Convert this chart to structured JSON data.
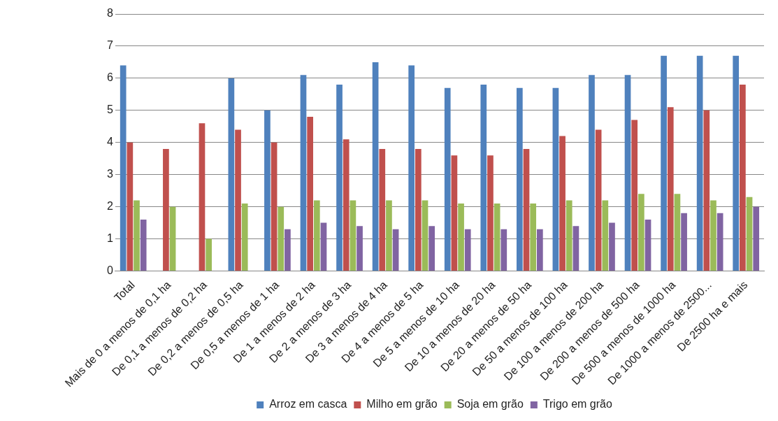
{
  "chart_data": {
    "type": "bar",
    "categories": [
      "Total",
      "Mais de 0 a menos de 0,1 ha",
      "De 0,1 a menos de 0,2 ha",
      "De 0,2 a menos de 0,5 ha",
      "De 0,5 a menos de 1 ha",
      "De 1 a menos de 2 ha",
      "De 2 a menos de 3 ha",
      "De 3 a menos de 4 ha",
      "De 4 a menos de 5 ha",
      "De 5 a menos de 10 ha",
      "De 10 a menos de 20 ha",
      "De 20 a menos de 50 ha",
      "De 50 a menos de 100 ha",
      "De 100 a menos de 200 ha",
      "De 200 a menos de 500 ha",
      "De 500 a menos de 1000 ha",
      "De 1000 a menos de 2500...",
      "De 2500 ha e mais"
    ],
    "series": [
      {
        "name": "Arroz em casca",
        "color": "#4f81bd",
        "values": [
          6.4,
          null,
          null,
          6.0,
          5.0,
          6.1,
          5.8,
          6.5,
          6.4,
          5.7,
          5.8,
          5.7,
          5.7,
          6.1,
          6.1,
          6.7,
          6.7,
          6.7
        ]
      },
      {
        "name": "Milho em grão",
        "color": "#c0504d",
        "values": [
          4.0,
          3.8,
          4.6,
          4.4,
          4.0,
          4.8,
          4.1,
          3.8,
          3.8,
          3.6,
          3.6,
          3.8,
          4.2,
          4.4,
          4.7,
          5.1,
          5.0,
          5.8
        ]
      },
      {
        "name": "Soja em grão",
        "color": "#9bbb59",
        "values": [
          2.2,
          2.0,
          1.0,
          2.1,
          2.0,
          2.2,
          2.2,
          2.2,
          2.2,
          2.1,
          2.1,
          2.1,
          2.2,
          2.2,
          2.4,
          2.4,
          2.2,
          2.3
        ]
      },
      {
        "name": "Trigo em grão",
        "color": "#8064a2",
        "values": [
          1.6,
          null,
          null,
          null,
          1.3,
          1.5,
          1.4,
          1.3,
          1.4,
          1.3,
          1.3,
          1.3,
          1.4,
          1.5,
          1.6,
          1.8,
          1.8,
          2.0
        ]
      }
    ],
    "ylim": [
      0,
      8
    ],
    "yticks": [
      0,
      1,
      2,
      3,
      4,
      5,
      6,
      7,
      8
    ],
    "grid": "y",
    "legend": "bottom"
  }
}
